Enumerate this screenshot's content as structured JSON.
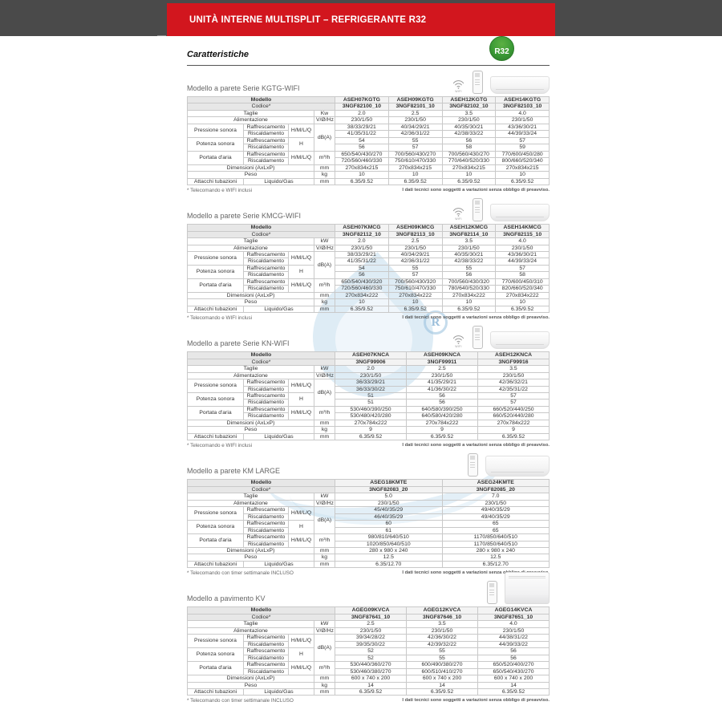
{
  "colors": {
    "accent_red": "#d2161e",
    "badge_green": "#3a9a35",
    "top_band_gray": "#4a4a4a"
  },
  "banner": {
    "title": "UNITÀ INTERNE MULTISPLIT – REFRIGERANTE R32"
  },
  "heading": {
    "title": "Caratteristiche",
    "r32_badge": "R32"
  },
  "disclaimer": "I dati tecnici sono soggetti a variazioni senza obbligo di preavviso.",
  "labels": {
    "modello": "Modello",
    "codice": "Codice*",
    "taglie": "Taglie",
    "alimentazione": "Alimentazione",
    "pressione": "Pressione sonora",
    "potenza": "Potenza sonora",
    "portata": "Portata d'aria",
    "dimensioni": "Dimensioni (AxLxP)",
    "peso": "Peso",
    "attacchi": "Attacchi tubazioni",
    "raffrescamento": "Raffrescamento",
    "riscaldamento": "Riscaldamento",
    "liquido_gas": "Liquido/Gas",
    "hmlq": "H/M/L/Q",
    "h": "H",
    "vhz": "V/Ø/Hz",
    "dba": "dB(A)",
    "m3h": "m³/h",
    "mm": "mm",
    "kg": "kg",
    "wifi": "WIFI"
  },
  "sections": [
    {
      "id": "kgtg-wifi",
      "title": "Modello a parete Serie KGTG-WIFI",
      "wifi_icon": true,
      "unit_image": "wall",
      "taglie_unit": "Kw",
      "models": [
        "ASEH07KGTG",
        "ASEH09KGTG",
        "ASEH12KGTG",
        "ASEH14KGTG"
      ],
      "codes": [
        "3NGF82100_10",
        "3NGF82101_10",
        "3NGF82102_10",
        "3NGF82103_10"
      ],
      "taglie": [
        "2.0",
        "2.5",
        "3.5",
        "4.0"
      ],
      "alimentazione": [
        "230/1/50",
        "230/1/50",
        "230/1/50",
        "230/1/50"
      ],
      "pressione_raff": [
        "38/33/29/21",
        "40/34/29/21",
        "40/35/30/21",
        "43/36/30/21"
      ],
      "pressione_risc": [
        "41/35/31/22",
        "42/36/31/22",
        "42/38/33/22",
        "44/39/33/24"
      ],
      "potenza_raff": [
        "54",
        "55",
        "56",
        "57"
      ],
      "potenza_risc": [
        "56",
        "57",
        "58",
        "59"
      ],
      "portata_raff": [
        "650/540/430/270",
        "700/560/430/270",
        "700/560/430/270",
        "770/600/450/280"
      ],
      "portata_risc": [
        "720/560/460/330",
        "750/610/470/330",
        "770/640/520/330",
        "800/660/520/340"
      ],
      "dimensioni": [
        "270x834x215",
        "270x834x215",
        "270x834x215",
        "270x834x215"
      ],
      "peso": [
        "10",
        "10",
        "10",
        "10"
      ],
      "attacchi": [
        "6.35/9.52",
        "6.35/9.52",
        "6.35/9.52",
        "6.35/9.52"
      ],
      "footnote": "* Telecomando e WIFI inclusi"
    },
    {
      "id": "kmcg-wifi",
      "title": "Modello a parete Serie KMCG-WIFI",
      "wifi_icon": true,
      "unit_image": "wall",
      "taglie_unit": "kW",
      "models": [
        "ASEH07KMCG",
        "ASEH09KMCG",
        "ASEH12KMCG",
        "ASEH14KMCG"
      ],
      "codes": [
        "3NGF82112_10",
        "3NGF82113_10",
        "3NGF82114_10",
        "3NGF82115_10"
      ],
      "taglie": [
        "2.0",
        "2.5",
        "3.5",
        "4.0"
      ],
      "alimentazione": [
        "230/1/50",
        "230/1/50",
        "230/1/50",
        "230/1/50"
      ],
      "pressione_raff": [
        "38/33/29/21",
        "40/34/29/21",
        "40/35/30/21",
        "43/36/30/21"
      ],
      "pressione_risc": [
        "41/35/31/22",
        "42/36/31/22",
        "42/38/33/22",
        "44/39/33/24"
      ],
      "potenza_raff": [
        "54",
        "55",
        "55",
        "57"
      ],
      "potenza_risc": [
        "56",
        "57",
        "56",
        "58"
      ],
      "portata_raff": [
        "650/540/430/320",
        "700/560/430/320",
        "700/560/430/320",
        "770/600/450/310"
      ],
      "portata_risc": [
        "720/560/460/330",
        "750/610/470/330",
        "780/640/520/330",
        "820/660/520/340"
      ],
      "dimensioni": [
        "270x834x222",
        "270x834x222",
        "270x834x222",
        "270x834x222"
      ],
      "peso": [
        "10",
        "10",
        "10",
        "10"
      ],
      "attacchi": [
        "6.35/9.52",
        "6.35/9.52",
        "6.35/9.52",
        "6.35/9.52"
      ],
      "footnote": "* Telecomando e WIFI inclusi"
    },
    {
      "id": "kn-wifi",
      "title": "Modello a parete Serie KN-WIFI",
      "wifi_icon": true,
      "unit_image": "wall",
      "taglie_unit": "kW",
      "models": [
        "ASEH07KNCA",
        "ASEH09KNCA",
        "ASEH12KNCA"
      ],
      "codes": [
        "3NGF99906",
        "3NGF99911",
        "3NGF99916"
      ],
      "taglie": [
        "2.0",
        "2.5",
        "3.5"
      ],
      "alimentazione": [
        "230/1/50",
        "230/1/50",
        "230/1/50"
      ],
      "pressione_raff": [
        "36/33/29/21",
        "41/35/29/21",
        "42/36/32/21"
      ],
      "pressione_risc": [
        "36/33/30/22",
        "41/36/30/22",
        "42/35/31/22"
      ],
      "potenza_raff": [
        "51",
        "56",
        "57"
      ],
      "potenza_risc": [
        "51",
        "56",
        "57"
      ],
      "portata_raff": [
        "530/460/390/250",
        "640/580/390/250",
        "660/520/440/250"
      ],
      "portata_risc": [
        "530/480/420/280",
        "640/580/420/280",
        "660/520/440/280"
      ],
      "dimensioni": [
        "270x784x222",
        "270x784x222",
        "270x784x222"
      ],
      "peso": [
        "9",
        "9",
        "9"
      ],
      "attacchi": [
        "6.35/9.52",
        "6.35/9.52",
        "6.35/9.52"
      ],
      "footnote": "* Telecomando e WIFI inclusi"
    },
    {
      "id": "km-large",
      "title": "Modello a parete KM LARGE",
      "wifi_icon": false,
      "unit_image": "wall-large",
      "taglie_unit": "kW",
      "models": [
        "ASEG18KMTE",
        "ASEG24KMTE"
      ],
      "codes": [
        "3NGF82083_20",
        "3NGF82085_20"
      ],
      "taglie": [
        "5.0",
        "7.0"
      ],
      "alimentazione": [
        "230/1/50",
        "230/1/50"
      ],
      "pressione_raff": [
        "45/40/35/29",
        "49/40/35/29"
      ],
      "pressione_risc": [
        "46/40/35/29",
        "49/40/35/29"
      ],
      "potenza_raff": [
        "60",
        "65"
      ],
      "potenza_risc": [
        "61",
        "65"
      ],
      "portata_raff": [
        "980/810/640/510",
        "1170/850/640/510"
      ],
      "portata_risc": [
        "1020/850/640/510",
        "1170/850/640/510"
      ],
      "dimensioni": [
        "280 x 980 x 240",
        "280 x 980 x 240"
      ],
      "peso": [
        "12.5",
        "12.5"
      ],
      "attacchi": [
        "6.35/12.70",
        "6.35/12.70"
      ],
      "footnote": "* Telecomando con timer settimanale INCLUSO"
    },
    {
      "id": "kv-pavimento",
      "title": "Modello a pavimento KV",
      "wifi_icon": false,
      "unit_image": "floor",
      "taglie_unit": "kW",
      "models": [
        "AGEG09KVCA",
        "AGEG12KVCA",
        "AGEG14KVCA"
      ],
      "codes": [
        "3NGF87641_10",
        "3NGF87646_10",
        "3NGF87651_10"
      ],
      "taglie": [
        "2.5",
        "3.5",
        "4.0"
      ],
      "alimentazione": [
        "230/1/50",
        "230/1/50",
        "230/1/50"
      ],
      "pressione_raff": [
        "39/34/28/22",
        "42/36/30/22",
        "44/38/31/22"
      ],
      "pressione_risc": [
        "39/35/30/22",
        "42/39/32/22",
        "44/39/33/22"
      ],
      "potenza_raff": [
        "52",
        "55",
        "56"
      ],
      "potenza_risc": [
        "52",
        "55",
        "56"
      ],
      "portata_raff": [
        "530/440/360/270",
        "600/490/380/270",
        "650/520/400/270"
      ],
      "portata_risc": [
        "530/460/380/270",
        "600/510/410/270",
        "650/540/430/270"
      ],
      "dimensioni": [
        "600 x 740 x 200",
        "600 x 740 x 200",
        "600 x 740 x 200"
      ],
      "peso": [
        "14",
        "14",
        "14"
      ],
      "attacchi": [
        "6.35/9.52",
        "6.35/9.52",
        "6.35/9.52"
      ],
      "footnote": "* Telecomando con timer settimanale INCLUSO"
    }
  ]
}
